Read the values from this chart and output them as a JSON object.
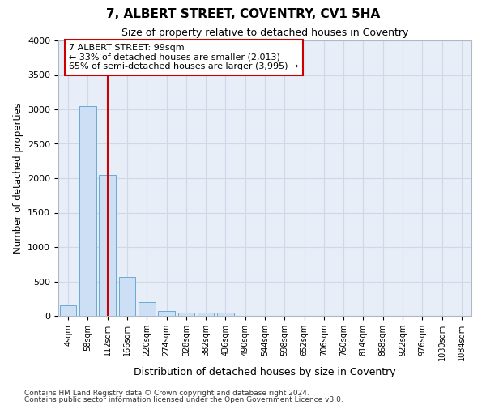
{
  "title": "7, ALBERT STREET, COVENTRY, CV1 5HA",
  "subtitle": "Size of property relative to detached houses in Coventry",
  "xlabel": "Distribution of detached houses by size in Coventry",
  "ylabel": "Number of detached properties",
  "bar_color": "#ccdff5",
  "bar_edge_color": "#6aaad4",
  "categories": [
    "4sqm",
    "58sqm",
    "112sqm",
    "166sqm",
    "220sqm",
    "274sqm",
    "328sqm",
    "382sqm",
    "436sqm",
    "490sqm",
    "544sqm",
    "598sqm",
    "652sqm",
    "706sqm",
    "760sqm",
    "814sqm",
    "868sqm",
    "922sqm",
    "976sqm",
    "1030sqm",
    "1084sqm"
  ],
  "values": [
    150,
    3050,
    2050,
    570,
    200,
    75,
    50,
    50,
    50,
    0,
    0,
    0,
    0,
    0,
    0,
    0,
    0,
    0,
    0,
    0,
    0
  ],
  "red_line_x": 2,
  "annotation_line1": "7 ALBERT STREET: 99sqm",
  "annotation_line2": "← 33% of detached houses are smaller (2,013)",
  "annotation_line3": "65% of semi-detached houses are larger (3,995) →",
  "annotation_box_color": "#ffffff",
  "annotation_border_color": "#cc0000",
  "red_line_color": "#cc0000",
  "ylim": [
    0,
    4000
  ],
  "yticks": [
    0,
    500,
    1000,
    1500,
    2000,
    2500,
    3000,
    3500,
    4000
  ],
  "footer_line1": "Contains HM Land Registry data © Crown copyright and database right 2024.",
  "footer_line2": "Contains public sector information licensed under the Open Government Licence v3.0.",
  "grid_color": "#d0d8e8",
  "ax_bg_color": "#e8eef8",
  "fig_bg_color": "#ffffff"
}
